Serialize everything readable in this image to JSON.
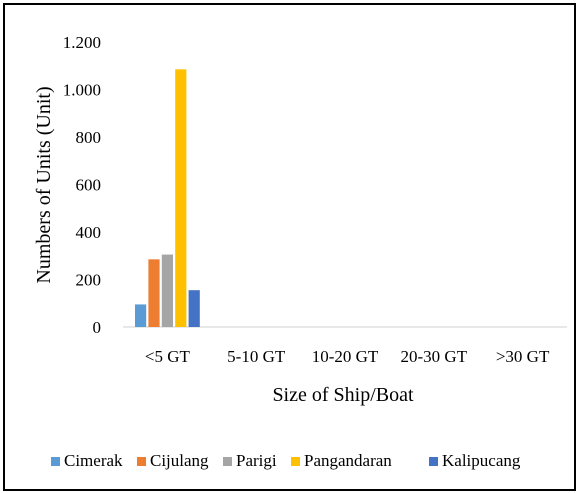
{
  "chart_data": {
    "type": "bar",
    "title": "",
    "xlabel": "Size of Ship/Boat",
    "ylabel": "Numbers of Units (Unit)",
    "categories": [
      "<5 GT",
      "5-10 GT",
      "10-20 GT",
      "20-30 GT",
      ">30 GT"
    ],
    "ylim": [
      0,
      1200
    ],
    "yticks": [
      0,
      200,
      400,
      600,
      800,
      1000,
      1200
    ],
    "ytick_labels": [
      "0",
      "200",
      "400",
      "600",
      "800",
      "1.000",
      "1.200"
    ],
    "grid": false,
    "legend_position": "bottom",
    "series": [
      {
        "name": "Cimerak",
        "color": "#5b9bd5",
        "values": [
          95,
          0,
          0,
          0,
          0
        ]
      },
      {
        "name": "Cijulang",
        "color": "#ed7d31",
        "values": [
          285,
          0,
          0,
          0,
          0
        ]
      },
      {
        "name": "Parigi",
        "color": "#a5a5a5",
        "values": [
          305,
          0,
          0,
          0,
          0
        ]
      },
      {
        "name": "Pangandaran",
        "color": "#ffc000",
        "values": [
          1085,
          0,
          0,
          0,
          0
        ]
      },
      {
        "name": "Kalipucang",
        "color": "#4472c4",
        "values": [
          155,
          0,
          0,
          0,
          0
        ]
      }
    ]
  }
}
